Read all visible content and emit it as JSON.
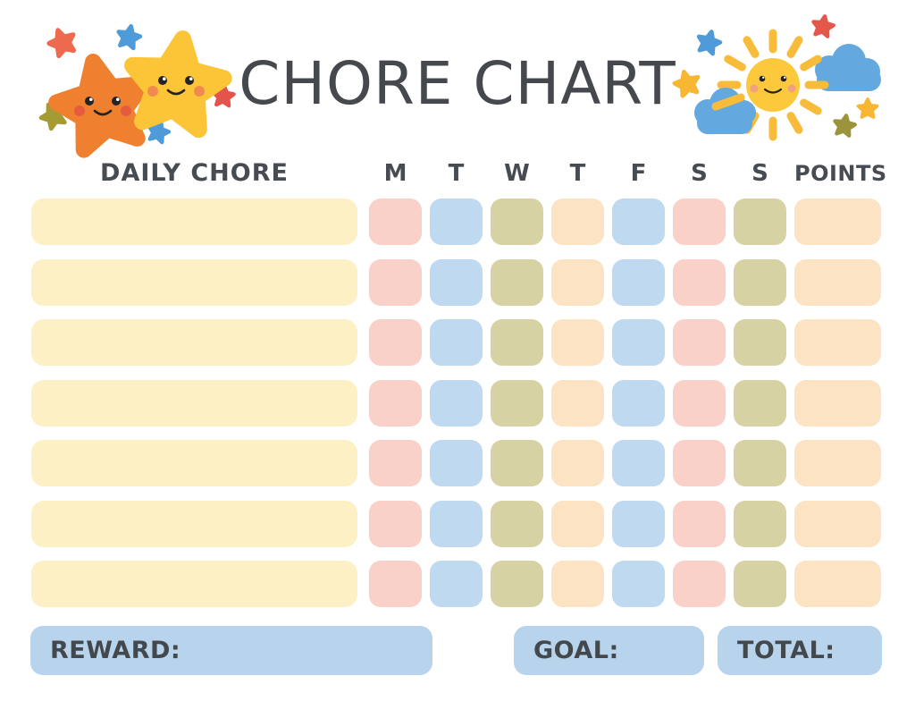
{
  "title": "CHORE CHART",
  "table": {
    "chore_column_header": "DAILY CHORE",
    "day_column_headers": [
      "M",
      "T",
      "W",
      "T",
      "F",
      "S",
      "S"
    ],
    "points_column_header": "POINTS",
    "rows": 7,
    "chore_values": [
      "",
      "",
      "",
      "",
      "",
      "",
      ""
    ],
    "points_values": [
      "",
      "",
      "",
      "",
      "",
      "",
      ""
    ]
  },
  "footer": {
    "reward_label": "REWARD:",
    "reward_value": "",
    "goal_label": "GOAL:",
    "goal_value": "",
    "total_label": "TOTAL:",
    "total_value": ""
  },
  "colors": {
    "background": "#ffffff",
    "text": "#474c52",
    "chore_cell": "#fdf0c5",
    "day_cells": [
      "#f9d1c9",
      "#bed9f0",
      "#d7d2a4",
      "#fbe3c3",
      "#bed9f0",
      "#f9d1c9",
      "#d7d2a4"
    ],
    "points_cell": "#fbe3c3",
    "footer_box": "#b8d4ed"
  },
  "decorations": {
    "top_left": {
      "name": "two-smiling-stars",
      "big_star_colors": [
        "#ef8030",
        "#fcc437"
      ],
      "accent_star_colors": [
        "#ed6a4e",
        "#4f9ad8",
        "#a59b33",
        "#4f9ad8",
        "#e4544a"
      ]
    },
    "top_right": {
      "name": "smiling-sun-with-clouds",
      "sun_color": "#fcc93d",
      "ray_color": "#f8bb3a",
      "cloud_color": "#64a8e0",
      "accent_star_colors": [
        "#4f9ad8",
        "#e4584b",
        "#f7b733",
        "#f7b733",
        "#9b943c"
      ]
    }
  }
}
